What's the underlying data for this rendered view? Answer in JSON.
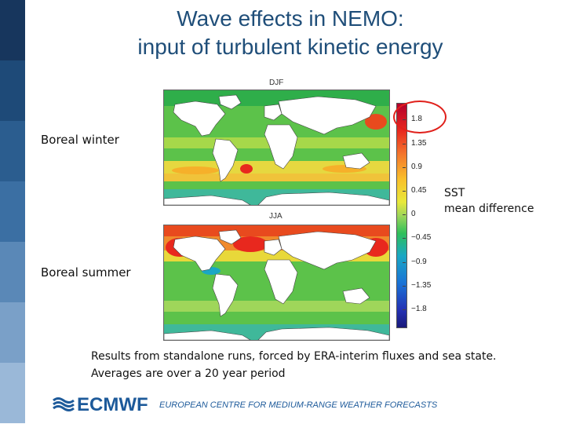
{
  "slide": {
    "title_line1": "Wave effects in NEMO:",
    "title_line2": "input of turbulent kinetic energy"
  },
  "maps": {
    "top_title": "DJF",
    "bottom_title": "JJA"
  },
  "labels": {
    "boreal_winter": "Boreal winter",
    "boreal_summer": "Boreal summer",
    "sst_line1": "SST",
    "sst_line2": "mean difference"
  },
  "colorbar": {
    "ticks": [
      "1.8",
      "1.35",
      "0.9",
      "0.45",
      "0",
      "−0.45",
      "−0.9",
      "−1.35",
      "−1.8"
    ]
  },
  "caption": {
    "line1": "Results from standalone runs, forced by ERA-interim fluxes and sea state.",
    "line2": "Averages are over a 20 year period"
  },
  "footer": {
    "logo_text": "ECMWF",
    "organization": "EUROPEAN CENTRE FOR MEDIUM-RANGE WEATHER FORECASTS"
  },
  "colors": {
    "title": "#1f4e79",
    "brand": "#1d5a9a",
    "highlight": "#e0201b"
  }
}
